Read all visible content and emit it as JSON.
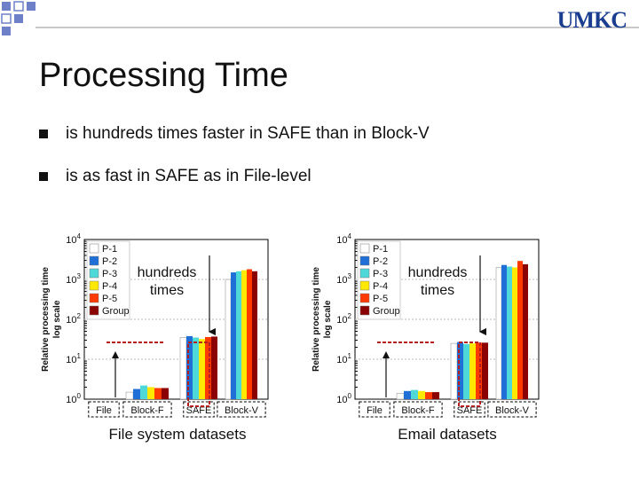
{
  "header": {
    "logo_text": "UMKC",
    "title": "Processing Time"
  },
  "bullets": [
    "is hundreds times faster in SAFE than in Block-V",
    "is as fast in SAFE as in File-level"
  ],
  "colors": {
    "square_fill": "#6e80c8",
    "annotation": "#b41e1e"
  },
  "chart_data": [
    {
      "type": "bar",
      "caption": "File system datasets",
      "ylabel": "Relative processing time log scale",
      "yscale": "log",
      "ylim": [
        1,
        10000
      ],
      "y_ticks": [
        "10^0",
        "10^1",
        "10^2",
        "10^3",
        "10^4"
      ],
      "categories": [
        "File",
        "Block-F",
        "SAFE",
        "Block-V"
      ],
      "legend_position": "top-left",
      "annotation": "hundreds times",
      "series": [
        {
          "name": "P-1",
          "color": "#ffffff",
          "values": [
            1,
            1.5,
            35,
            1000
          ]
        },
        {
          "name": "P-2",
          "color": "#1f6fd6",
          "values": [
            1,
            1.8,
            38,
            1500
          ]
        },
        {
          "name": "P-3",
          "color": "#4ed8d8",
          "values": [
            1,
            2.2,
            35,
            1600
          ]
        },
        {
          "name": "P-4",
          "color": "#ffe900",
          "values": [
            1,
            2.0,
            32,
            1700
          ]
        },
        {
          "name": "P-5",
          "color": "#ff3a00",
          "values": [
            1,
            1.9,
            36,
            1800
          ]
        },
        {
          "name": "Group",
          "color": "#8b0000",
          "values": [
            1,
            1.9,
            37,
            1600
          ]
        }
      ]
    },
    {
      "type": "bar",
      "caption": "Email datasets",
      "ylabel": "Relative processing time log scale",
      "yscale": "log",
      "ylim": [
        1,
        10000
      ],
      "y_ticks": [
        "10^0",
        "10^1",
        "10^2",
        "10^3",
        "10^4"
      ],
      "categories": [
        "File",
        "Block-F",
        "SAFE",
        "Block-V"
      ],
      "legend_position": "top-left",
      "annotation": "hundreds times",
      "series": [
        {
          "name": "P-1",
          "color": "#ffffff",
          "values": [
            1,
            1.4,
            25,
            2000
          ]
        },
        {
          "name": "P-2",
          "color": "#1f6fd6",
          "values": [
            1,
            1.6,
            27,
            2300
          ]
        },
        {
          "name": "P-3",
          "color": "#4ed8d8",
          "values": [
            1,
            1.7,
            24,
            2100
          ]
        },
        {
          "name": "P-4",
          "color": "#ffe900",
          "values": [
            1,
            1.6,
            25,
            2000
          ]
        },
        {
          "name": "P-5",
          "color": "#ff3a00",
          "values": [
            1,
            1.5,
            26,
            2900
          ]
        },
        {
          "name": "Group",
          "color": "#8b0000",
          "values": [
            1,
            1.5,
            26,
            2400
          ]
        }
      ]
    }
  ]
}
